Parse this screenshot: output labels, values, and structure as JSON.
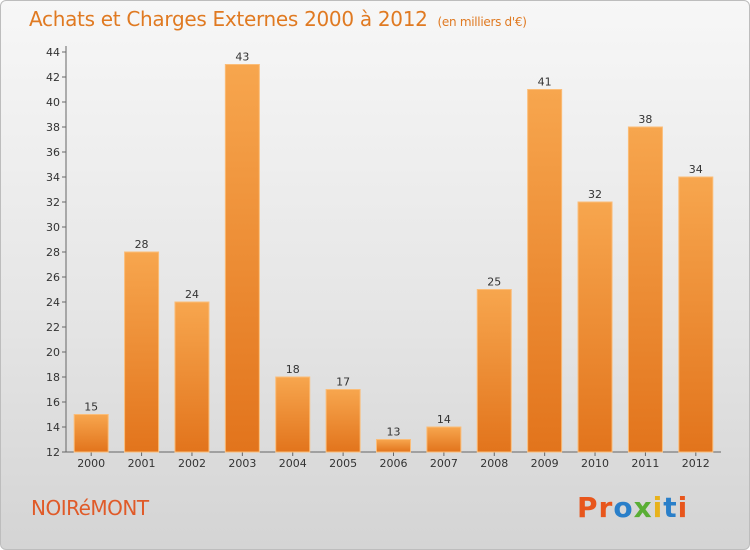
{
  "header": {
    "title": "Achats et Charges Externes 2000 à 2012",
    "subtitle": "(en milliers d'€)"
  },
  "footer": {
    "town": "NOIRéMONT",
    "logo": "Proxiti",
    "logo_colors": [
      "#e8561c",
      "#e8561c",
      "#2a7fc9",
      "#5aae35",
      "#e8b21c",
      "#2a7fc9",
      "#e8561c"
    ]
  },
  "chart_data": {
    "type": "bar",
    "categories": [
      "2000",
      "2001",
      "2002",
      "2003",
      "2004",
      "2005",
      "2006",
      "2007",
      "2008",
      "2009",
      "2010",
      "2011",
      "2012"
    ],
    "values": [
      15,
      28,
      24,
      43,
      18,
      17,
      13,
      14,
      25,
      41,
      32,
      38,
      34
    ],
    "xlabel": "",
    "ylabel": "",
    "ylim": [
      12,
      44
    ],
    "yticks": [
      12,
      14,
      16,
      18,
      20,
      22,
      24,
      26,
      28,
      30,
      32,
      34,
      36,
      38,
      40,
      42,
      44
    ],
    "grid": false,
    "legend": "none",
    "bar_color_top": "#f7a64e",
    "bar_color_bottom": "#e2741c",
    "label_color": "#333333"
  }
}
